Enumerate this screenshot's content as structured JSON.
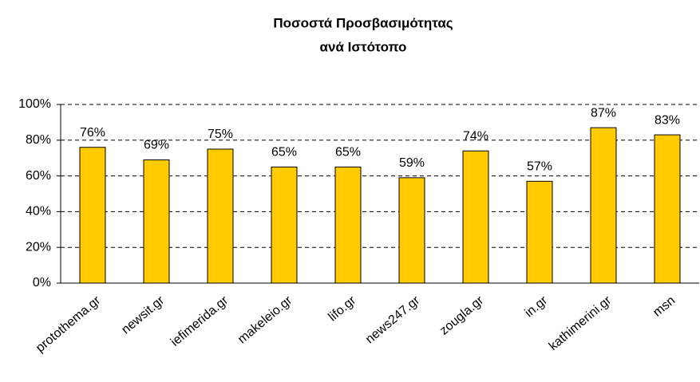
{
  "chart_data": {
    "type": "bar",
    "title": [
      "Ποσοστά Προσβασιμότητας",
      "ανά Ιστότοπο"
    ],
    "categories": [
      "protothema.gr",
      "newsit.gr",
      "iefimerida.gr",
      "makeleio.gr",
      "lifo.gr",
      "news247.gr",
      "zougla.gr",
      "in.gr",
      "kathimerini.gr",
      "msn"
    ],
    "values": [
      76,
      69,
      75,
      65,
      65,
      59,
      74,
      57,
      87,
      83
    ],
    "value_labels": [
      "76%",
      "69%",
      "75%",
      "65%",
      "65%",
      "59%",
      "74%",
      "57%",
      "87%",
      "83%"
    ],
    "color": "#ffcc00",
    "ylim": [
      0,
      100
    ],
    "yticks": [
      {
        "value": 0,
        "label": "0%"
      },
      {
        "value": 20,
        "label": "20%"
      },
      {
        "value": 40,
        "label": "40%"
      },
      {
        "value": 60,
        "label": "60%"
      },
      {
        "value": 80,
        "label": "80%"
      },
      {
        "value": 100,
        "label": "100%"
      }
    ],
    "grid": true
  }
}
